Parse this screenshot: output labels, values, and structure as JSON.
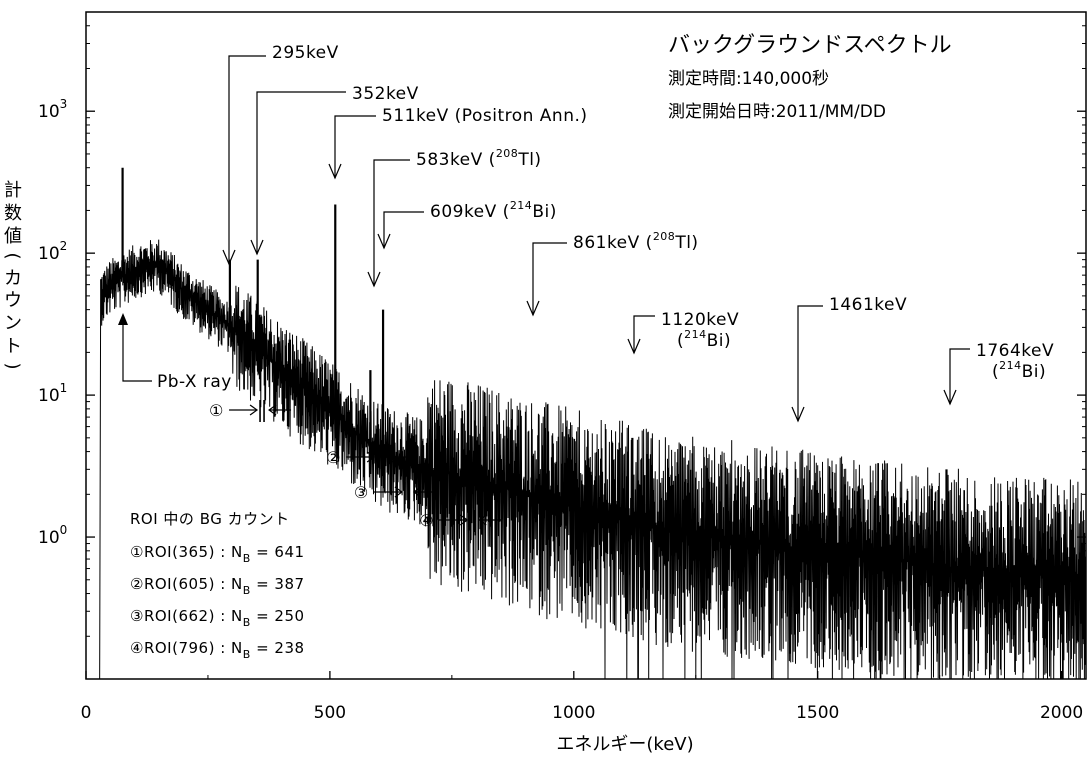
{
  "chart_data": {
    "type": "line",
    "title": "バックグラウンドスペクトル",
    "subtitle_lines": [
      "測定時間:140,000秒",
      "測定開始日時:2011/MM/DD"
    ],
    "xlabel": "エネルギー(keV)",
    "ylabel": "計数値(カウント)",
    "xlim": [
      0,
      2050
    ],
    "ylim": [
      0.1,
      5000
    ],
    "yscale": "log",
    "x_ticks": [
      {
        "value": 0,
        "label": "0"
      },
      {
        "value": 500,
        "label": "500"
      },
      {
        "value": 1000,
        "label": "1000"
      },
      {
        "value": 1500,
        "label": "1500"
      },
      {
        "value": 2000,
        "label": "2000"
      }
    ],
    "y_ticks": [
      {
        "value": 1,
        "base": "10",
        "exp": "0"
      },
      {
        "value": 10,
        "base": "10",
        "exp": "1"
      },
      {
        "value": 100,
        "base": "10",
        "exp": "2"
      },
      {
        "value": 1000,
        "base": "10",
        "exp": "3"
      }
    ],
    "grid": false,
    "continuum": [
      {
        "x": 30,
        "y": 50
      },
      {
        "x": 50,
        "y": 60
      },
      {
        "x": 80,
        "y": 70
      },
      {
        "x": 110,
        "y": 80
      },
      {
        "x": 150,
        "y": 85
      },
      {
        "x": 200,
        "y": 55
      },
      {
        "x": 300,
        "y": 30
      },
      {
        "x": 400,
        "y": 15
      },
      {
        "x": 500,
        "y": 8
      },
      {
        "x": 600,
        "y": 4
      },
      {
        "x": 700,
        "y": 3
      },
      {
        "x": 800,
        "y": 2.5
      },
      {
        "x": 1000,
        "y": 1.6
      },
      {
        "x": 1200,
        "y": 1.1
      },
      {
        "x": 1500,
        "y": 0.8
      },
      {
        "x": 1800,
        "y": 0.6
      },
      {
        "x": 2050,
        "y": 0.5
      }
    ],
    "peaks": [
      {
        "energy": 75,
        "height": 400
      },
      {
        "energy": 295,
        "height": 90
      },
      {
        "energy": 352,
        "height": 90
      },
      {
        "energy": 511,
        "height": 220
      },
      {
        "energy": 583,
        "height": 15
      },
      {
        "energy": 609,
        "height": 40
      },
      {
        "energy": 1120,
        "height": 5
      },
      {
        "energy": 1764,
        "height": 3
      }
    ],
    "annotations": [
      {
        "label": "295keV",
        "energy": 295
      },
      {
        "label": "352keV",
        "energy": 352
      },
      {
        "label": "511keV (Positron Ann.)",
        "energy": 511
      },
      {
        "label": "583keV (",
        "sup": "208",
        "tail": "Tl)",
        "energy": 583
      },
      {
        "label": "609keV (",
        "sup": "214",
        "tail": "Bi)",
        "energy": 609
      },
      {
        "label": "861keV (",
        "sup": "208",
        "tail": "Tl)",
        "energy": 861
      },
      {
        "label": "1120keV",
        "line2_pre": "(",
        "line2_sup": "214",
        "line2_tail": "Bi)",
        "energy": 1120
      },
      {
        "label": "1461keV",
        "energy": 1461
      },
      {
        "label": "1764keV",
        "line2_pre": "(",
        "line2_sup": "214",
        "line2_tail": "Bi)",
        "energy": 1764
      },
      {
        "label": "Pb-X ray",
        "energy": 75
      }
    ],
    "roi_markers": [
      {
        "symbol": "①",
        "energy": 365
      },
      {
        "symbol": "②",
        "energy": 605
      },
      {
        "symbol": "③",
        "energy": 662
      },
      {
        "symbol": "④",
        "energy": 796
      }
    ],
    "roi_table": {
      "header": "ROI 中の BG カウント",
      "rows": [
        {
          "label": "①ROI(365) : N",
          "sub": "B",
          "value": " = 641"
        },
        {
          "label": "②ROI(605) : N",
          "sub": "B",
          "value": " = 387"
        },
        {
          "label": "③ROI(662) : N",
          "sub": "B",
          "value": " = 250"
        },
        {
          "label": "④ROI(796) : N",
          "sub": "B",
          "value": " = 238"
        }
      ]
    }
  }
}
